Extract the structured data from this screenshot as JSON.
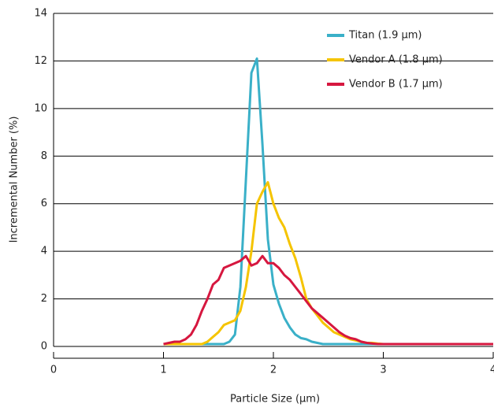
{
  "chart_data": {
    "type": "line",
    "x_label": "Particle Size (µm)",
    "y_label": "Incremental Number (%)",
    "x": [
      1.0,
      1.05,
      1.1,
      1.15,
      1.2,
      1.25,
      1.3,
      1.35,
      1.4,
      1.45,
      1.5,
      1.55,
      1.6,
      1.65,
      1.7,
      1.75,
      1.8,
      1.85,
      1.9,
      1.95,
      2.0,
      2.05,
      2.1,
      2.15,
      2.2,
      2.25,
      2.3,
      2.35,
      2.4,
      2.45,
      2.5,
      2.55,
      2.6,
      2.65,
      2.7,
      2.75,
      2.8,
      2.85,
      2.9,
      2.95,
      3.0,
      3.25,
      3.5,
      3.75,
      4.0
    ],
    "series": [
      {
        "name": "Titan (1.9 µm)",
        "color": "#3ab0c8",
        "values": [
          0.1,
          0.1,
          0.1,
          0.1,
          0.1,
          0.1,
          0.1,
          0.1,
          0.1,
          0.1,
          0.1,
          0.1,
          0.2,
          0.5,
          2.5,
          7,
          11.5,
          12.1,
          8.5,
          4.5,
          2.6,
          1.8,
          1.2,
          0.8,
          0.5,
          0.35,
          0.3,
          0.2,
          0.15,
          0.1,
          0.1,
          0.1,
          0.1,
          0.1,
          0.1,
          0.1,
          0.1,
          0.1,
          0.1,
          0.1,
          0.1,
          0.1,
          0.1,
          0.1,
          0.1
        ]
      },
      {
        "name": "Vendor A (1.8 µm)",
        "color": "#f5c400",
        "values": [
          0.1,
          0.1,
          0.1,
          0.1,
          0.1,
          0.1,
          0.1,
          0.1,
          0.2,
          0.4,
          0.6,
          0.9,
          1.0,
          1.1,
          1.5,
          2.5,
          4,
          6,
          6.5,
          6.9,
          6,
          5.4,
          5,
          4.3,
          3.7,
          2.9,
          2,
          1.6,
          1.3,
          1,
          0.8,
          0.6,
          0.5,
          0.4,
          0.3,
          0.25,
          0.2,
          0.15,
          0.15,
          0.12,
          0.1,
          0.1,
          0.1,
          0.1,
          0.1
        ]
      },
      {
        "name": "Vendor B (1.7 µm)",
        "color": "#d6173f",
        "values": [
          0.1,
          0.15,
          0.2,
          0.2,
          0.3,
          0.5,
          0.9,
          1.5,
          2,
          2.6,
          2.8,
          3.3,
          3.4,
          3.5,
          3.6,
          3.8,
          3.4,
          3.5,
          3.8,
          3.5,
          3.5,
          3.3,
          3,
          2.8,
          2.5,
          2.2,
          1.9,
          1.6,
          1.4,
          1.2,
          1.0,
          0.8,
          0.6,
          0.45,
          0.35,
          0.3,
          0.2,
          0.15,
          0.12,
          0.1,
          0.1,
          0.1,
          0.1,
          0.1,
          0.1
        ]
      }
    ],
    "xlim": [
      0,
      4
    ],
    "xticks": [
      0,
      1,
      2,
      3,
      4
    ],
    "ylim": [
      0,
      14
    ],
    "yticks": [
      0,
      2,
      4,
      6,
      8,
      10,
      12,
      14
    ],
    "grid": true,
    "legend": "upper right"
  }
}
